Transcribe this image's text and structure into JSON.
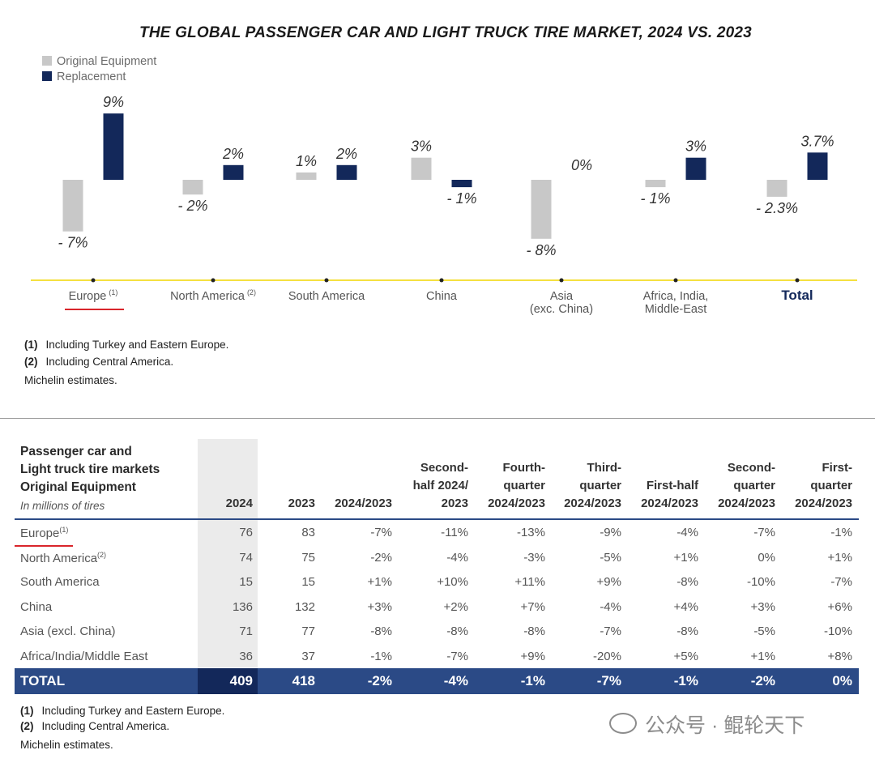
{
  "chart_data": {
    "type": "bar",
    "title": "THE GLOBAL PASSENGER CAR AND LIGHT TRUCK TIRE MARKET, 2024 VS. 2023",
    "categories": [
      "Europe",
      "North America",
      "South America",
      "China",
      "Asia",
      "Africa, India, Middle-East",
      "Total"
    ],
    "category_display": [
      {
        "line1": "Europe",
        "line2": "",
        "note": "(1)"
      },
      {
        "line1": "North America",
        "line2": "",
        "note": "(2)"
      },
      {
        "line1": "South America",
        "line2": "",
        "note": ""
      },
      {
        "line1": "China",
        "line2": "",
        "note": ""
      },
      {
        "line1": "Asia",
        "line2": "(exc. China)",
        "note": ""
      },
      {
        "line1": "Africa, India,",
        "line2": "Middle-East",
        "note": ""
      },
      {
        "line1": "Total",
        "line2": "",
        "note": ""
      }
    ],
    "series": [
      {
        "name": "Original Equipment",
        "color": "#c8c8c8",
        "values": [
          -7,
          -2,
          1,
          3,
          -8,
          -1,
          -2.3
        ],
        "labels": [
          "- 7%",
          "- 2%",
          "1%",
          "3%",
          "- 8%",
          "- 1%",
          "- 2.3%"
        ]
      },
      {
        "name": "Replacement",
        "color": "#13285a",
        "values": [
          9,
          2,
          2,
          -1,
          0,
          3,
          3.7
        ],
        "labels": [
          "9%",
          "2%",
          "2%",
          "- 1%",
          "0%",
          "3%",
          "3.7%"
        ]
      }
    ],
    "ylabel": "",
    "xlabel": "",
    "ylim": [
      -10,
      10
    ],
    "legend_position": "top-left"
  },
  "chart_footnotes": [
    {
      "num": "(1)",
      "text": "Including Turkey and Eastern Europe."
    },
    {
      "num": "(2)",
      "text": "Including Central America."
    }
  ],
  "chart_source": "Michelin estimates.",
  "table": {
    "title_lines": [
      "Passenger car and",
      "Light truck tire markets",
      "Original Equipment"
    ],
    "units": "In millions of tires",
    "columns": [
      {
        "lines": [
          "2024"
        ]
      },
      {
        "lines": [
          "2023"
        ]
      },
      {
        "lines": [
          "2024/2023"
        ]
      },
      {
        "lines": [
          "Second-",
          "half 2024/",
          "2023"
        ]
      },
      {
        "lines": [
          "Fourth-",
          "quarter",
          "2024/2023"
        ]
      },
      {
        "lines": [
          "Third-",
          "quarter",
          "2024/2023"
        ]
      },
      {
        "lines": [
          "First-half",
          "2024/2023"
        ]
      },
      {
        "lines": [
          "Second-",
          "quarter",
          "2024/2023"
        ]
      },
      {
        "lines": [
          "First-",
          "quarter",
          "2024/2023"
        ]
      }
    ],
    "rows": [
      {
        "region": "Europe",
        "note": "(1)",
        "values": [
          "76",
          "83",
          "-7%",
          "-11%",
          "-13%",
          "-9%",
          "-4%",
          "-7%",
          "-1%"
        ]
      },
      {
        "region": "North America",
        "note": "(2)",
        "values": [
          "74",
          "75",
          "-2%",
          "-4%",
          "-3%",
          "-5%",
          "+1%",
          "0%",
          "+1%"
        ]
      },
      {
        "region": "South America",
        "note": "",
        "values": [
          "15",
          "15",
          "+1%",
          "+10%",
          "+11%",
          "+9%",
          "-8%",
          "-10%",
          "-7%"
        ]
      },
      {
        "region": "China",
        "note": "",
        "values": [
          "136",
          "132",
          "+3%",
          "+2%",
          "+7%",
          "-4%",
          "+4%",
          "+3%",
          "+6%"
        ]
      },
      {
        "region": "Asia (excl. China)",
        "note": "",
        "values": [
          "71",
          "77",
          "-8%",
          "-8%",
          "-8%",
          "-7%",
          "-8%",
          "-5%",
          "-10%"
        ]
      },
      {
        "region": "Africa/India/Middle East",
        "note": "",
        "values": [
          "36",
          "37",
          "-1%",
          "-7%",
          "+9%",
          "-20%",
          "+5%",
          "+1%",
          "+8%"
        ]
      }
    ],
    "total": {
      "region": "TOTAL",
      "values": [
        "409",
        "418",
        "-2%",
        "-4%",
        "-1%",
        "-7%",
        "-1%",
        "-2%",
        "0%"
      ]
    }
  },
  "table_footnotes": [
    {
      "num": "(1)",
      "text": "Including Turkey and Eastern Europe."
    },
    {
      "num": "(2)",
      "text": "Including Central America."
    }
  ],
  "table_source": "Michelin estimates.",
  "watermark": "公众号 · 鲲轮天下",
  "colors": {
    "oe": "#c8c8c8",
    "replacement": "#13285a",
    "axis": "#f2d600",
    "table_accent": "#2b4a86",
    "highlight": "#d9252b"
  }
}
